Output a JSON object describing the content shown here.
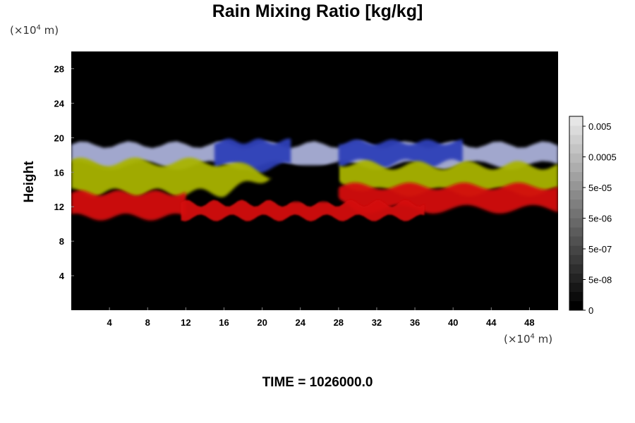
{
  "chart_data": {
    "type": "heatmap",
    "title": "Rain Mixing Ratio [kg/kg]",
    "ylabel": "Height",
    "xlabel": "",
    "x_unit": {
      "prefix": "(×10",
      "exp": "4",
      "suffix": " m)"
    },
    "y_unit": {
      "prefix": "(×10",
      "exp": "4",
      "suffix": " m)"
    },
    "xlim": [
      0,
      51
    ],
    "ylim": [
      0,
      30
    ],
    "x_ticks": [
      4,
      8,
      12,
      16,
      20,
      24,
      28,
      32,
      36,
      40,
      44,
      48
    ],
    "y_ticks": [
      4,
      8,
      12,
      16,
      20,
      24,
      28
    ],
    "grid": false,
    "colorbar": {
      "position": "right",
      "labels": [
        "0.005",
        "0.0005",
        "5e-05",
        "5e-06",
        "5e-07",
        "5e-08",
        "0"
      ],
      "levels": 21,
      "color_min": "#000000",
      "color_max": "#e6e6e6"
    },
    "background_color": "#000000",
    "layers": [
      {
        "name": "upper",
        "color": "#2f3fb8",
        "note_color_light": "#aab0d8"
      },
      {
        "name": "middle",
        "color": "#a9b400"
      },
      {
        "name": "lower",
        "color": "#d40a0a"
      }
    ],
    "footer": "TIME = 1026000.0"
  }
}
